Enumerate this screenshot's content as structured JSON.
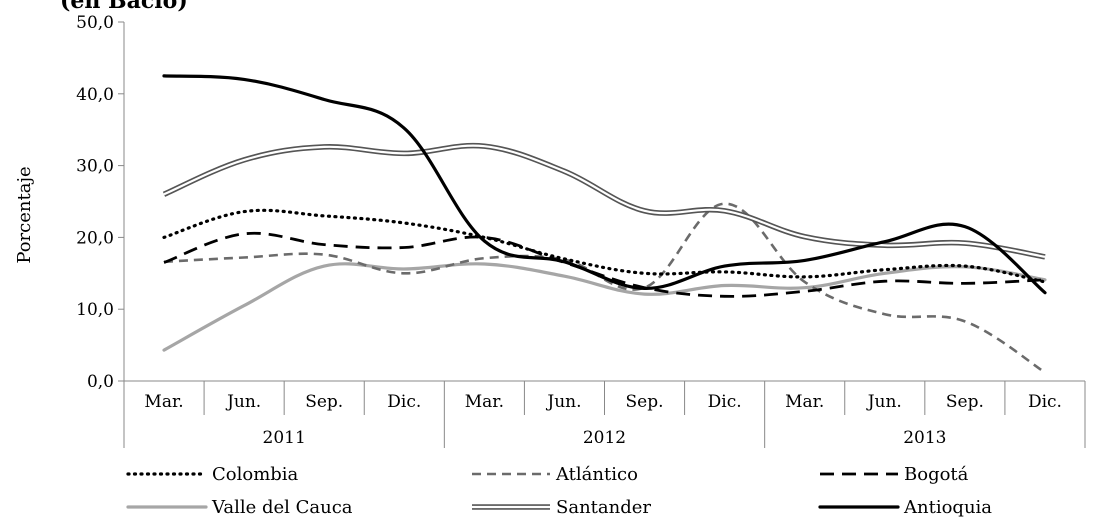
{
  "chart_data": {
    "type": "line",
    "title": "",
    "title_fragment": "(en Bacio)",
    "xlabel": "",
    "ylabel": "Porcentaje",
    "ylim": [
      0,
      50
    ],
    "y_ticks": [
      "0,0",
      "10,0",
      "20,0",
      "30,0",
      "40,0",
      "50,0"
    ],
    "categories": [
      "Mar.",
      "Jun.",
      "Sep.",
      "Dic.",
      "Mar.",
      "Jun.",
      "Sep.",
      "Dic.",
      "Mar.",
      "Jun.",
      "Sep.",
      "Dic."
    ],
    "years": [
      "2011",
      "2012",
      "2013"
    ],
    "grid": false,
    "legend_position": "bottom",
    "series": [
      {
        "name": "Colombia",
        "values": [
          20.0,
          23.6,
          23.0,
          22.0,
          20.0,
          17.0,
          15.0,
          15.2,
          14.5,
          15.5,
          16.0,
          13.8
        ]
      },
      {
        "name": "Atlántico",
        "values": [
          16.6,
          17.2,
          17.6,
          15.0,
          17.1,
          16.9,
          13.0,
          24.7,
          13.8,
          9.3,
          8.3,
          1.2
        ]
      },
      {
        "name": "Bogotá",
        "values": [
          16.5,
          20.5,
          19.0,
          18.6,
          20.0,
          16.5,
          13.0,
          11.8,
          12.5,
          13.9,
          13.6,
          14.1
        ]
      },
      {
        "name": "Valle del Cauca",
        "values": [
          4.3,
          10.5,
          16.0,
          15.6,
          16.3,
          14.6,
          12.1,
          13.3,
          13.0,
          15.0,
          15.9,
          14.1
        ]
      },
      {
        "name": "Santander",
        "values": [
          26.0,
          30.8,
          32.6,
          31.7,
          32.7,
          29.2,
          23.7,
          23.7,
          20.1,
          18.9,
          19.2,
          17.3
        ]
      },
      {
        "name": "Antioquia",
        "values": [
          42.5,
          42.0,
          39.2,
          35.2,
          19.5,
          16.6,
          12.9,
          16.0,
          16.8,
          19.4,
          21.5,
          12.3
        ]
      }
    ],
    "styles": {
      "Colombia": {
        "color": "#000000",
        "dash": "dotted"
      },
      "Atlántico": {
        "color": "#6b6b6b",
        "dash": "dashed"
      },
      "Bogotá": {
        "color": "#000000",
        "dash": "longdash"
      },
      "Valle del Cauca": {
        "color": "#a6a6a6",
        "dash": "solid"
      },
      "Santander": {
        "color": "#555555",
        "dash": "double"
      },
      "Antioquia": {
        "color": "#000000",
        "dash": "solid-thick"
      }
    }
  }
}
